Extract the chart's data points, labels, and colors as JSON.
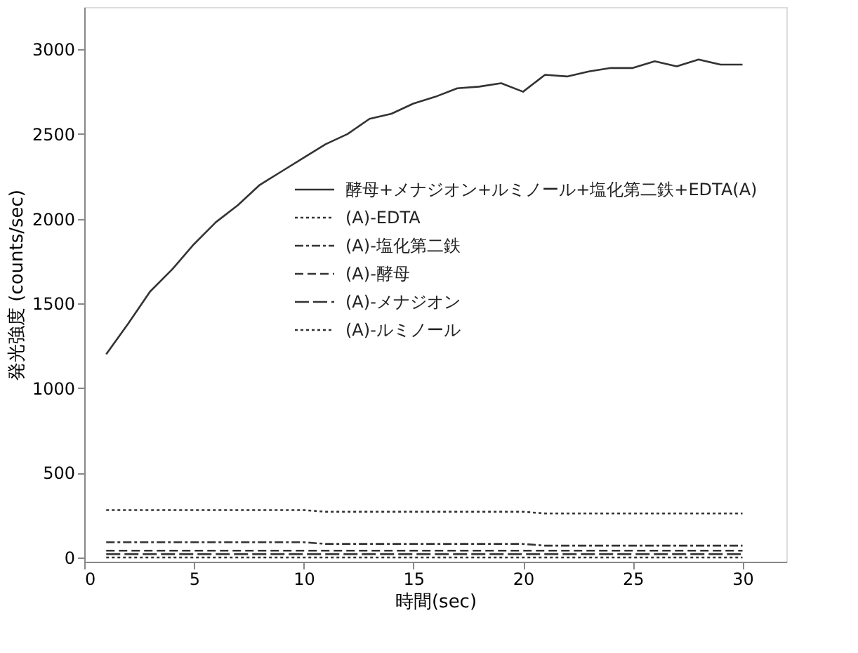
{
  "chart_data": {
    "type": "line",
    "xlabel": "時間(sec)",
    "ylabel": "発光強度 (counts/sec)",
    "xlim": [
      0,
      32
    ],
    "xticks": [
      0,
      5,
      10,
      15,
      20,
      25,
      30
    ],
    "ylim": [
      -25,
      3250
    ],
    "yticks": [
      0,
      500,
      1000,
      1500,
      2000,
      2500,
      3000
    ],
    "grid": false,
    "legend": "right",
    "marker": "none",
    "x": [
      1,
      2,
      3,
      4,
      5,
      6,
      7,
      8,
      9,
      10,
      11,
      12,
      13,
      14,
      15,
      16,
      17,
      18,
      19,
      20,
      21,
      22,
      23,
      24,
      25,
      26,
      27,
      28,
      29,
      30
    ],
    "series": [
      {
        "name": "酵母+メナジオン+ルミノール+塩化第二鉄+EDTA(A)",
        "color": "#333333",
        "line_style": "solid",
        "values": [
          1200,
          1380,
          1570,
          1700,
          1850,
          1980,
          2080,
          2200,
          2280,
          2360,
          2440,
          2500,
          2590,
          2620,
          2680,
          2720,
          2770,
          2780,
          2800,
          2750,
          2850,
          2840,
          2870,
          2890,
          2890,
          2930,
          2900,
          2940,
          2910,
          2910
        ]
      },
      {
        "name": "(A)-EDTA",
        "color": "#333333",
        "line_style": "dotted",
        "values": [
          280,
          280,
          280,
          280,
          280,
          280,
          280,
          280,
          280,
          280,
          270,
          270,
          270,
          270,
          270,
          270,
          270,
          270,
          270,
          270,
          260,
          260,
          260,
          260,
          260,
          260,
          260,
          260,
          260,
          260
        ]
      },
      {
        "name": "(A)-塩化第二鉄",
        "color": "#333333",
        "line_style": "dashdot",
        "values": [
          90,
          90,
          90,
          90,
          90,
          90,
          90,
          90,
          90,
          90,
          80,
          80,
          80,
          80,
          80,
          80,
          80,
          80,
          80,
          80,
          70,
          70,
          70,
          70,
          70,
          70,
          70,
          70,
          70,
          70
        ]
      },
      {
        "name": "(A)-酵母",
        "color": "#333333",
        "line_style": "dashed",
        "values": [
          40,
          40,
          40,
          40,
          40,
          40,
          40,
          40,
          40,
          40,
          40,
          40,
          40,
          40,
          40,
          40,
          40,
          40,
          40,
          40,
          40,
          40,
          40,
          40,
          40,
          40,
          40,
          40,
          40,
          40
        ]
      },
      {
        "name": "(A)-メナジオン",
        "color": "#333333",
        "line_style": "longdash",
        "values": [
          20,
          20,
          20,
          20,
          20,
          20,
          20,
          20,
          20,
          20,
          20,
          20,
          20,
          20,
          20,
          20,
          20,
          20,
          20,
          20,
          20,
          20,
          20,
          20,
          20,
          20,
          20,
          20,
          20,
          20
        ]
      },
      {
        "name": "(A)-ルミノール",
        "color": "#333333",
        "line_style": "dotted",
        "values": [
          0,
          0,
          0,
          0,
          0,
          0,
          0,
          0,
          0,
          0,
          0,
          0,
          0,
          0,
          0,
          0,
          0,
          0,
          0,
          0,
          0,
          0,
          0,
          0,
          0,
          0,
          0,
          0,
          0,
          0
        ]
      }
    ]
  }
}
